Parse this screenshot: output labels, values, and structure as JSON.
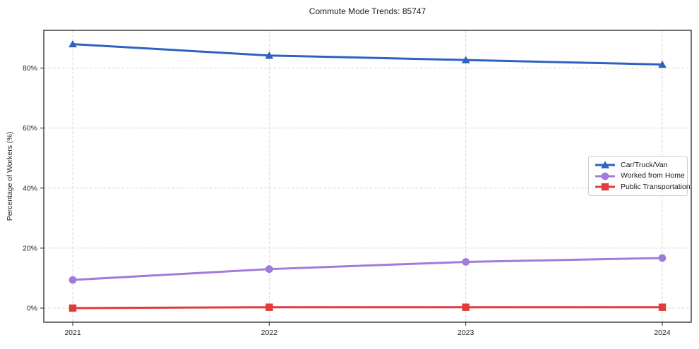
{
  "chart_data": {
    "type": "line",
    "title": "Commute Mode Trends: 85747",
    "xlabel": "",
    "ylabel": "Percentage of Workers (%)",
    "categories": [
      "2021",
      "2022",
      "2023",
      "2024"
    ],
    "series": [
      {
        "name": "Car/Truck/Van",
        "color": "#2d62c1",
        "marker": "triangle",
        "values": [
          88.0,
          84.2,
          82.7,
          81.2
        ]
      },
      {
        "name": "Worked from Home",
        "color": "#a07bdb",
        "marker": "circle",
        "values": [
          9.4,
          13.0,
          15.4,
          16.7
        ]
      },
      {
        "name": "Public Transportation",
        "color": "#e03c3c",
        "marker": "square",
        "values": [
          0.0,
          0.3,
          0.3,
          0.3
        ]
      }
    ],
    "yticks": [
      0,
      20,
      40,
      60,
      80
    ],
    "ytick_labels": [
      "0%",
      "20%",
      "40%",
      "60%",
      "80%"
    ],
    "ylim": [
      -4.7,
      92.6
    ],
    "grid": true,
    "grid_style": "dashed",
    "legend_position": "right-middle",
    "frame_color": "#262626",
    "grid_color": "#d9d9d9"
  }
}
